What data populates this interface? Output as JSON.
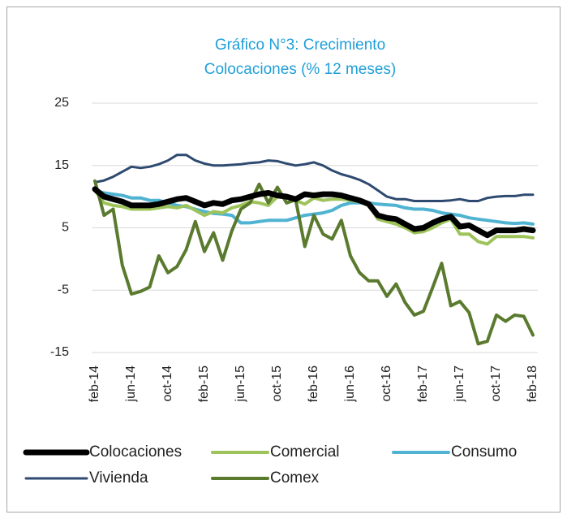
{
  "chart_data": {
    "type": "line",
    "title_lines": [
      "Gráfico N°3: Crecimiento",
      "Colocaciones (% 12 meses)"
    ],
    "categories": [
      "feb-14",
      null,
      null,
      null,
      "jun-14",
      null,
      null,
      null,
      "oct-14",
      null,
      null,
      null,
      "feb-15",
      null,
      null,
      null,
      "jun-15",
      null,
      null,
      null,
      "oct-15",
      null,
      null,
      null,
      "feb-16",
      null,
      null,
      null,
      "jun-16",
      null,
      null,
      null,
      "oct-16",
      null,
      null,
      null,
      "feb-17",
      null,
      null,
      null,
      "jun-17",
      null,
      null,
      null,
      "oct-17",
      null,
      null,
      null,
      "feb-18"
    ],
    "ylim": [
      -15,
      25
    ],
    "yticks": [
      -15,
      -5,
      5,
      15,
      25
    ],
    "grid": true,
    "series": [
      {
        "name": "Colocaciones",
        "color": "#000000",
        "values": [
          11.2,
          10,
          9.6,
          9.2,
          8.6,
          8.6,
          8.6,
          8.8,
          9.2,
          9.6,
          9.8,
          9.2,
          8.6,
          9.0,
          8.8,
          9.4,
          9.6,
          10.0,
          10.4,
          10.6,
          10.2,
          10.0,
          9.6,
          10.4,
          10.2,
          10.4,
          10.4,
          10.2,
          9.8,
          9.4,
          8.8,
          7.0,
          6.6,
          6.4,
          5.6,
          4.8,
          5.0,
          5.8,
          6.4,
          6.8,
          5.2,
          5.4,
          4.6,
          3.8,
          4.6,
          4.6,
          4.6,
          4.8,
          4.6
        ]
      },
      {
        "name": "Comercial",
        "color": "#9dc35a",
        "values": [
          11,
          9,
          8.6,
          8.4,
          8,
          8,
          8,
          8.2,
          8.4,
          8.2,
          8.6,
          7.8,
          7.0,
          7.6,
          7.4,
          8.2,
          8.6,
          9.2,
          9.0,
          8.6,
          10.0,
          9.8,
          9.4,
          8.8,
          9.8,
          9.4,
          9.6,
          9.6,
          9.4,
          9.2,
          8.6,
          6.4,
          6.0,
          5.6,
          5.0,
          4.2,
          4.4,
          5.0,
          5.8,
          6.4,
          4.0,
          4.0,
          2.8,
          2.4,
          3.6,
          3.6,
          3.6,
          3.6,
          3.4
        ]
      },
      {
        "name": "Consumo",
        "color": "#4fb3d1",
        "values": [
          11,
          10.6,
          10.4,
          10.2,
          9.8,
          9.8,
          9.4,
          9.4,
          9.0,
          8.6,
          8.4,
          8.0,
          7.6,
          7.3,
          7.2,
          7.0,
          5.8,
          5.8,
          6.0,
          6.2,
          6.2,
          6.2,
          6.6,
          7.0,
          7.2,
          7.4,
          7.8,
          8.6,
          9.0,
          9.0,
          9.0,
          8.8,
          8.7,
          8.6,
          8.2,
          8.0,
          8.0,
          7.8,
          7.4,
          7.2,
          7.0,
          6.6,
          6.4,
          6.2,
          6.0,
          5.8,
          5.7,
          5.8,
          5.6
        ]
      },
      {
        "name": "Vivienda",
        "color": "#2e4a70",
        "values": [
          12.3,
          12.6,
          13.2,
          14.0,
          14.8,
          14.6,
          14.8,
          15.2,
          15.8,
          16.7,
          16.7,
          15.8,
          15.3,
          15.0,
          15.0,
          15.1,
          15.2,
          15.4,
          15.5,
          15.8,
          15.7,
          15.3,
          15.0,
          15.2,
          15.5,
          15.0,
          14.2,
          13.6,
          13.2,
          12.7,
          12.0,
          11.0,
          10.0,
          9.6,
          9.6,
          9.3,
          9.3,
          9.3,
          9.3,
          9.4,
          9.6,
          9.3,
          9.3,
          9.8,
          10.0,
          10.1,
          10.1,
          10.3,
          10.3
        ]
      },
      {
        "name": "Comex",
        "color": "#5a7a2e",
        "values": [
          12.5,
          7,
          8,
          -1,
          -5.6,
          -5.2,
          -4.5,
          0.5,
          -2.2,
          -1.2,
          1.5,
          6,
          1.2,
          4.2,
          -0.2,
          4.5,
          8.0,
          9,
          12,
          9,
          11.5,
          9,
          9.5,
          2,
          7,
          4,
          3.2,
          6.2,
          0.5,
          -2.2,
          -3.5,
          -3.5,
          -6,
          -4,
          -7,
          -9,
          -8.4,
          -4.6,
          -0.7,
          -7.5,
          -6.8,
          -8.6,
          -13.6,
          -13.2,
          -9,
          -10,
          -9,
          -9.2,
          -12.2
        ]
      }
    ]
  }
}
